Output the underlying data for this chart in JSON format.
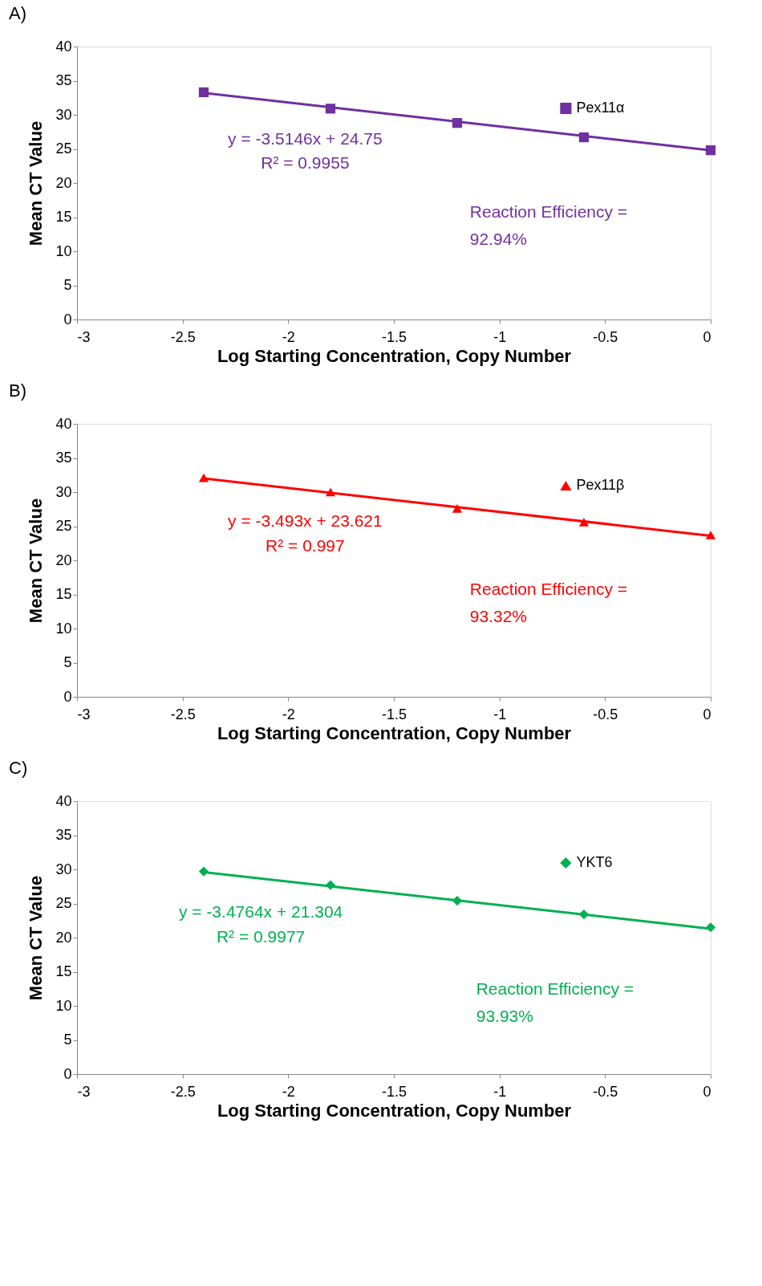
{
  "chart_data": [
    {
      "type": "scatter",
      "title": "A)",
      "xlabel": "Log Starting Concentration, Copy Number",
      "ylabel": "Mean CT Value",
      "xlim": [
        -3,
        0
      ],
      "xticks": [
        -3,
        -2.5,
        -2,
        -1.5,
        -1,
        -0.5,
        0
      ],
      "ylim": [
        0,
        40
      ],
      "yticks": [
        0,
        5,
        10,
        15,
        20,
        25,
        30,
        35,
        40
      ],
      "grid": false,
      "legend": "top right",
      "annotations": [
        "y = -3.5146x + 24.75",
        "R² = 0.9955",
        "Reaction Efficiency = 92.94%"
      ],
      "series": [
        {
          "name": "Pex11α",
          "color": "#7030a0",
          "marker": "square",
          "x": [
            -2.4,
            -1.8,
            -1.2,
            -0.6,
            0
          ],
          "values": [
            33.3,
            30.9,
            28.8,
            26.7,
            24.8
          ]
        },
        {
          "type": "line",
          "color": "#7030a0",
          "marker": "none",
          "x": [
            -2.4,
            0
          ],
          "values": [
            33.2,
            24.8
          ]
        }
      ]
    },
    {
      "type": "scatter",
      "title": "B)",
      "xlabel": "Log Starting Concentration, Copy Number",
      "ylabel": "Mean CT Value",
      "xlim": [
        -3,
        0
      ],
      "xticks": [
        -3,
        -2.5,
        -2,
        -1.5,
        -1,
        -0.5,
        0
      ],
      "ylim": [
        0,
        40
      ],
      "yticks": [
        0,
        5,
        10,
        15,
        20,
        25,
        30,
        35,
        40
      ],
      "grid": false,
      "legend": "top right",
      "annotations": [
        "y = -3.493x + 23.621",
        "R² = 0.997",
        "Reaction Efficiency = 93.32%"
      ],
      "series": [
        {
          "name": "Pex11β",
          "color": "#ff0000",
          "marker": "triangle",
          "x": [
            -2.4,
            -1.8,
            -1.2,
            -0.6,
            0
          ],
          "values": [
            32.1,
            30.0,
            27.6,
            25.6,
            23.7
          ]
        },
        {
          "type": "line",
          "color": "#ff0000",
          "marker": "none",
          "x": [
            -2.4,
            0
          ],
          "values": [
            32.0,
            23.6
          ]
        }
      ]
    },
    {
      "type": "scatter",
      "title": "C)",
      "xlabel": "Log Starting Concentration, Copy Number",
      "ylabel": "Mean CT Value",
      "xlim": [
        -3,
        0
      ],
      "xticks": [
        -3,
        -2.5,
        -2,
        -1.5,
        -1,
        -0.5,
        0
      ],
      "ylim": [
        0,
        40
      ],
      "yticks": [
        0,
        5,
        10,
        15,
        20,
        25,
        30,
        35,
        40
      ],
      "grid": false,
      "legend": "top right",
      "annotations": [
        "y = -3.4764x + 21.304",
        "R² = 0.9977",
        "Reaction Efficiency = 93.93%"
      ],
      "series": [
        {
          "name": "YKT6",
          "color": "#00b050",
          "marker": "diamond",
          "x": [
            -2.4,
            -1.8,
            -1.2,
            -0.6,
            0
          ],
          "values": [
            29.7,
            27.7,
            25.4,
            23.4,
            21.5
          ]
        },
        {
          "type": "line",
          "color": "#00b050",
          "marker": "none",
          "x": [
            -2.4,
            0
          ],
          "values": [
            29.6,
            21.3
          ]
        }
      ]
    }
  ]
}
